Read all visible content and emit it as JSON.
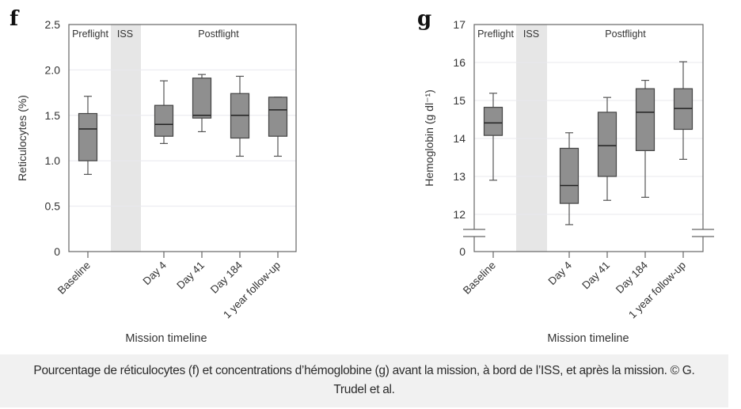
{
  "chart_data": [
    {
      "panel": "f",
      "type": "boxplot",
      "ylabel": "Reticulocytes (%)",
      "xlabel": "Mission timeline",
      "ylim": [
        0,
        2.5
      ],
      "yticks": [
        0,
        0.5,
        1.0,
        1.5,
        2.0,
        2.5
      ],
      "ytick_labels": [
        "0",
        "0.5",
        "1.0",
        "1.5",
        "2.0",
        "2.5"
      ],
      "axis_break": false,
      "grid": "horizontal",
      "phases": {
        "preflight": "Preflight",
        "iss": "ISS",
        "postflight": "Postflight"
      },
      "categories": [
        "Baseline",
        "Day 4",
        "Day 41",
        "Day 184",
        "1 year follow-up"
      ],
      "boxes": [
        {
          "label": "Baseline",
          "whisker_low": 0.85,
          "q1": 1.0,
          "median": 1.35,
          "q3": 1.52,
          "whisker_high": 1.71
        },
        {
          "label": "Day 4",
          "whisker_low": 1.19,
          "q1": 1.27,
          "median": 1.4,
          "q3": 1.61,
          "whisker_high": 1.88
        },
        {
          "label": "Day 41",
          "whisker_low": 1.32,
          "q1": 1.47,
          "median": 1.5,
          "q3": 1.91,
          "whisker_high": 1.95
        },
        {
          "label": "Day 184",
          "whisker_low": 1.05,
          "q1": 1.25,
          "median": 1.5,
          "q3": 1.74,
          "whisker_high": 1.93
        },
        {
          "label": "1 year follow-up",
          "whisker_low": 1.05,
          "q1": 1.27,
          "median": 1.56,
          "q3": 1.7,
          "whisker_high": 1.7
        }
      ]
    },
    {
      "panel": "g",
      "type": "boxplot",
      "ylabel": "Hemoglobin (g dl⁻¹)",
      "xlabel": "Mission timeline",
      "ylim": [
        11,
        17
      ],
      "yticks": [
        12,
        13,
        14,
        15,
        16,
        17
      ],
      "ytick_labels": [
        "12",
        "13",
        "14",
        "15",
        "16",
        "17"
      ],
      "axis_break": true,
      "axis_zero_label": "0",
      "grid": "horizontal",
      "phases": {
        "preflight": "Preflight",
        "iss": "ISS",
        "postflight": "Postflight"
      },
      "categories": [
        "Baseline",
        "Day 4",
        "Day 41",
        "Day 184",
        "1 year follow-up"
      ],
      "boxes": [
        {
          "label": "Baseline",
          "whisker_low": 12.9,
          "q1": 14.08,
          "median": 14.41,
          "q3": 14.82,
          "whisker_high": 15.19
        },
        {
          "label": "Day 4",
          "whisker_low": 11.73,
          "q1": 12.29,
          "median": 12.76,
          "q3": 13.74,
          "whisker_high": 14.15
        },
        {
          "label": "Day 41",
          "whisker_low": 12.37,
          "q1": 13.0,
          "median": 13.81,
          "q3": 14.69,
          "whisker_high": 15.08
        },
        {
          "label": "Day 184",
          "whisker_low": 12.45,
          "q1": 13.68,
          "median": 14.69,
          "q3": 15.31,
          "whisker_high": 15.53
        },
        {
          "label": "1 year follow-up",
          "whisker_low": 13.45,
          "q1": 14.24,
          "median": 14.79,
          "q3": 15.31,
          "whisker_high": 16.02
        }
      ]
    }
  ],
  "colors": {
    "box_fill": "#8f8f8f",
    "box_stroke": "#444444",
    "iss_band": "#e6e6e6",
    "grid": "#e8e8ee",
    "axis": "#666666",
    "caption_bg": "#f1f1f1"
  },
  "caption": "Pourcentage de réticulocytes (f) et concentrations d’hémoglobine (g) avant la mission, à bord de l’ISS, et après la mission. © G. Trudel et al."
}
